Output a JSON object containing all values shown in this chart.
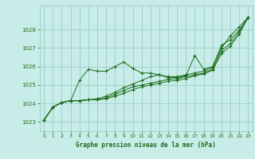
{
  "title": "Graphe pression niveau de la mer (hPa)",
  "background_color": "#c8ede8",
  "grid_color": "#a0d0cc",
  "line_color": "#1a6b1a",
  "marker_color": "#1a6b1a",
  "xlim": [
    -0.5,
    23.5
  ],
  "ylim": [
    1022.5,
    1029.3
  ],
  "yticks": [
    1023,
    1024,
    1025,
    1026,
    1027,
    1028
  ],
  "xticks": [
    0,
    1,
    2,
    3,
    4,
    5,
    6,
    7,
    8,
    9,
    10,
    11,
    12,
    13,
    14,
    15,
    16,
    17,
    18,
    19,
    20,
    21,
    22,
    23
  ],
  "series": [
    [
      1023.1,
      1023.8,
      1024.05,
      1024.15,
      1025.25,
      1025.85,
      1025.75,
      1025.75,
      1026.0,
      1026.25,
      1025.9,
      1025.65,
      1025.65,
      1025.55,
      1025.4,
      1025.4,
      1025.5,
      1026.6,
      1025.85,
      1026.0,
      1027.0,
      1027.65,
      1028.15,
      1028.65
    ],
    [
      1023.1,
      1023.8,
      1024.05,
      1024.15,
      1024.15,
      1024.2,
      1024.25,
      1024.4,
      1024.6,
      1024.85,
      1025.05,
      1025.25,
      1025.45,
      1025.55,
      1025.45,
      1025.45,
      1025.55,
      1025.65,
      1025.75,
      1025.95,
      1027.15,
      1027.45,
      1027.95,
      1028.65
    ],
    [
      1023.1,
      1023.8,
      1024.05,
      1024.15,
      1024.15,
      1024.2,
      1024.2,
      1024.3,
      1024.5,
      1024.7,
      1024.9,
      1025.0,
      1025.1,
      1025.2,
      1025.3,
      1025.35,
      1025.45,
      1025.55,
      1025.65,
      1025.85,
      1026.85,
      1027.25,
      1027.85,
      1028.65
    ],
    [
      1023.1,
      1023.8,
      1024.05,
      1024.15,
      1024.15,
      1024.2,
      1024.2,
      1024.25,
      1024.4,
      1024.55,
      1024.75,
      1024.9,
      1025.0,
      1025.1,
      1025.2,
      1025.25,
      1025.35,
      1025.5,
      1025.6,
      1025.8,
      1026.7,
      1027.1,
      1027.75,
      1028.65
    ]
  ]
}
